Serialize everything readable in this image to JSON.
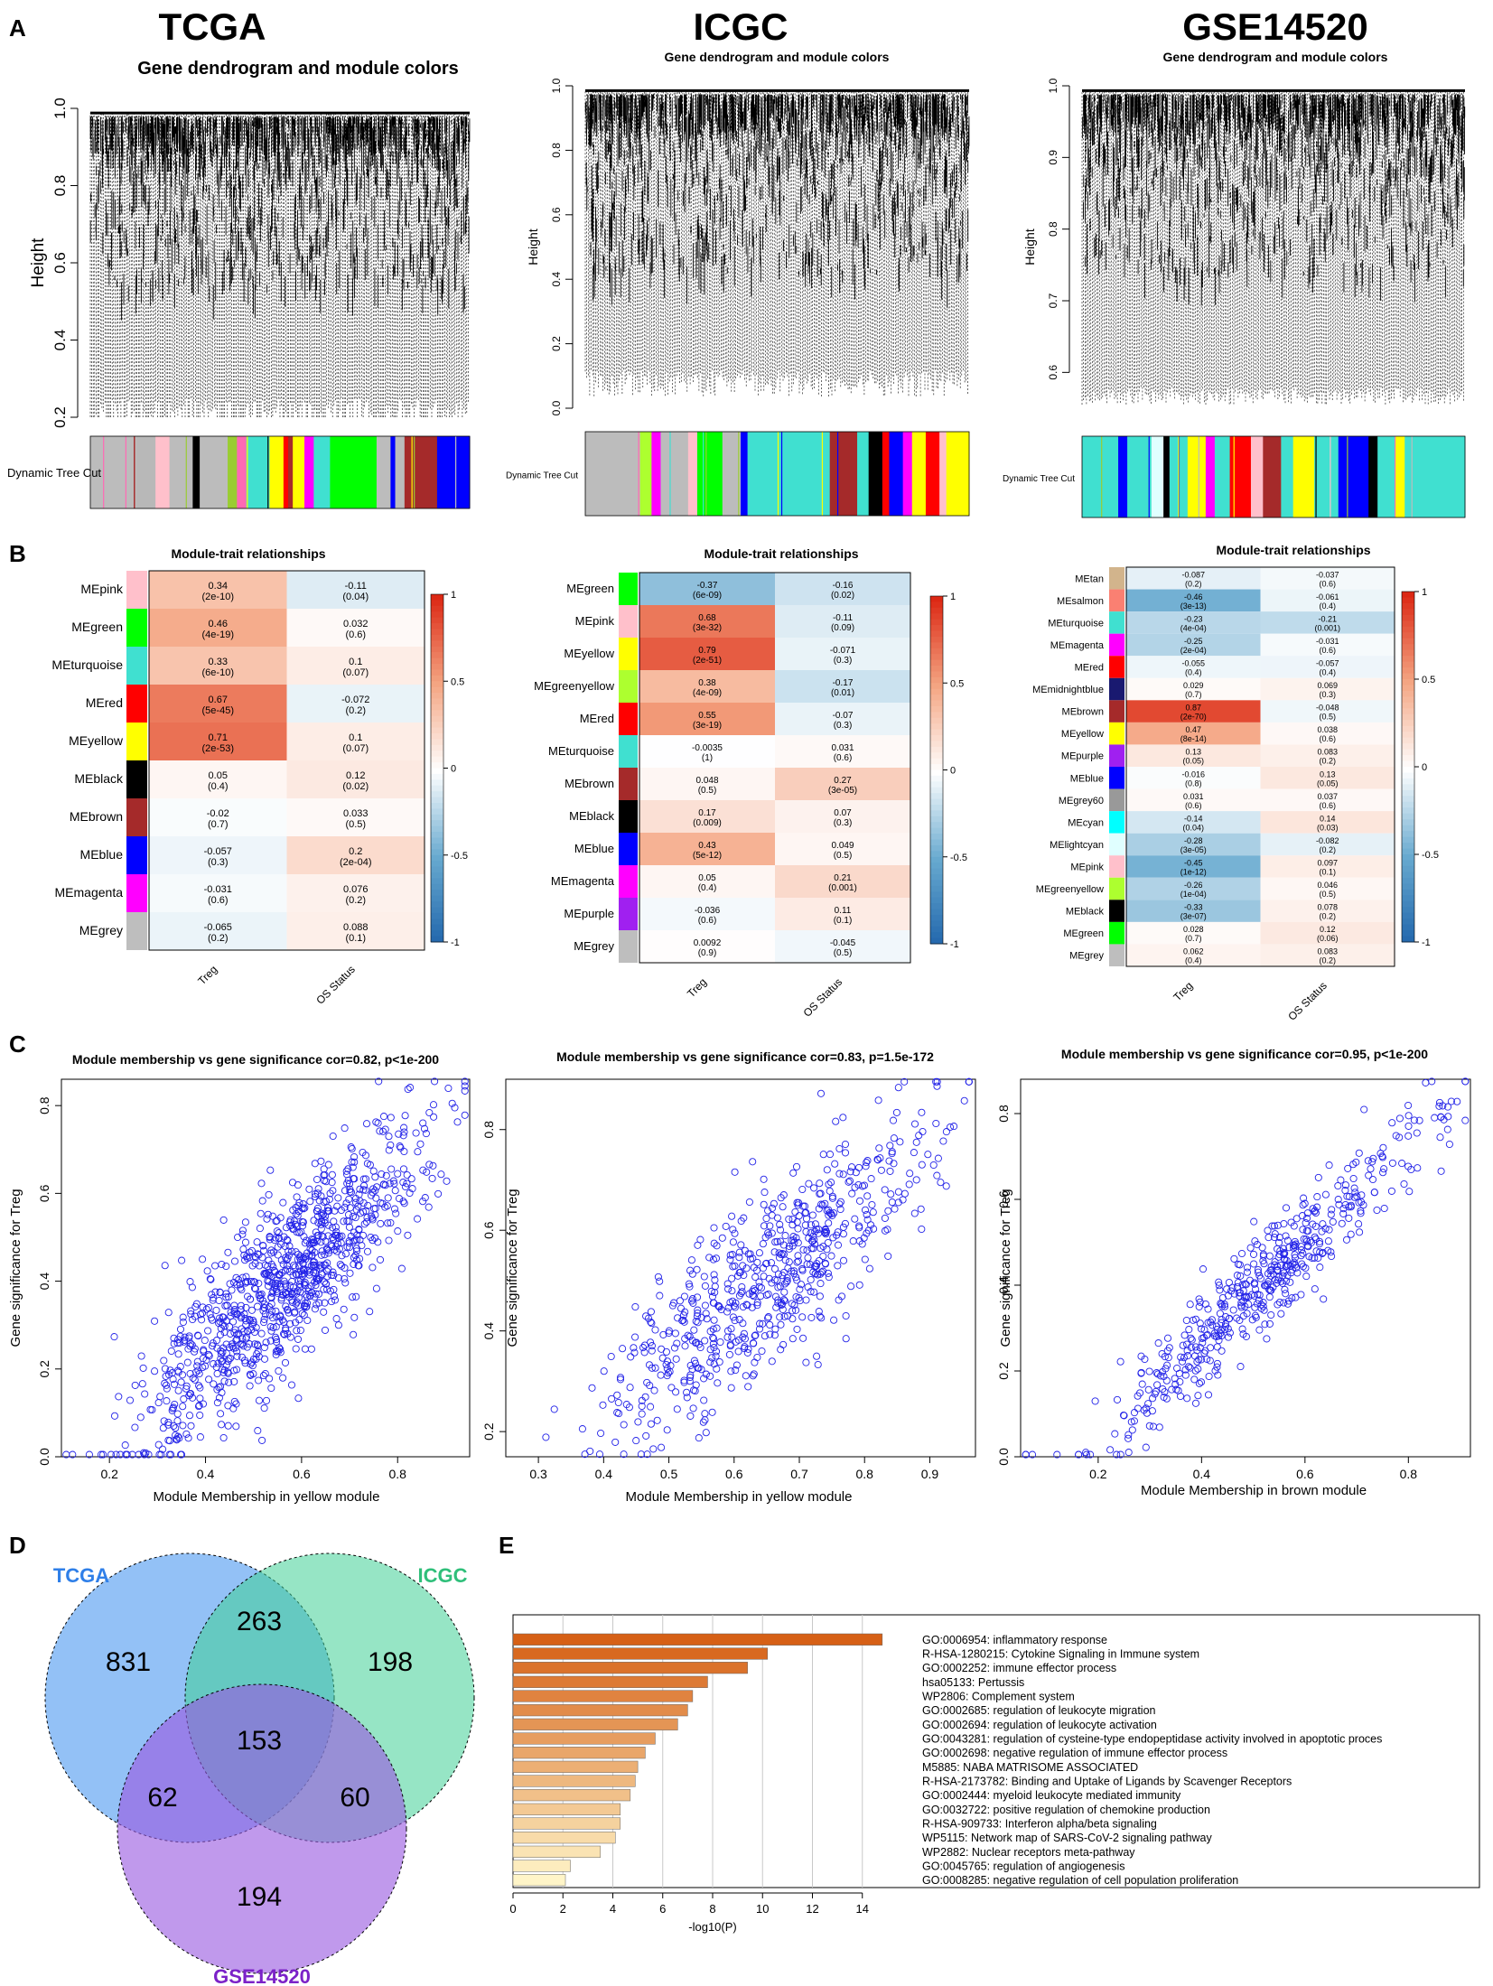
{
  "panel_letters": {
    "A": "A",
    "B": "B",
    "C": "C",
    "D": "D",
    "E": "E"
  },
  "datasets": [
    "TCGA",
    "ICGC",
    "GSE14520"
  ],
  "panel_a": {
    "subtitle": "Gene dendrogram and module colors",
    "ylabel": "Height",
    "track_label": "Dynamic Tree Cut",
    "tcga": {
      "ticks": [
        "0.2",
        "0.4",
        "0.6",
        "0.8",
        "1.0"
      ],
      "ylim": [
        0.2,
        1.0
      ],
      "modules": [
        [
          "#bcbcbc",
          1
        ],
        [
          "#b8b8b8",
          0.4
        ],
        [
          "#ffc0cb",
          0.3
        ],
        [
          "#bcbcbc",
          0.5
        ],
        [
          "#000000",
          0.15
        ],
        [
          "#bcbcbc",
          0.6
        ],
        [
          "#9acd32",
          0.2
        ],
        [
          "#ff69b4",
          0.2
        ],
        [
          "#40e0d0",
          0.5
        ],
        [
          "#ffff00",
          0.3
        ],
        [
          "#ff0000",
          0.1
        ],
        [
          "#a52a2a",
          0.1
        ],
        [
          "#ffff00",
          0.25
        ],
        [
          "#ff00ff",
          0.2
        ],
        [
          "#40e0d0",
          0.35
        ],
        [
          "#00ff00",
          1.0
        ],
        [
          "#bcbcbc",
          0.3
        ],
        [
          "#0000ff",
          0.1
        ],
        [
          "#bcbcbc",
          0.2
        ],
        [
          "#a52a2a",
          0.7
        ],
        [
          "#0000ff",
          0.7
        ]
      ]
    },
    "icgc": {
      "ticks": [
        "0.0",
        "0.2",
        "0.4",
        "0.6",
        "0.8",
        "1.0"
      ],
      "ylim": [
        0.0,
        1.0
      ],
      "modules": [
        [
          "#bcbcbc",
          1.2
        ],
        [
          "#adff2f",
          0.25
        ],
        [
          "#ff00ff",
          0.2
        ],
        [
          "#bcbcbc",
          0.6
        ],
        [
          "#ffc0cb",
          0.2
        ],
        [
          "#00ff00",
          0.55
        ],
        [
          "#bcbcbc",
          0.4
        ],
        [
          "#0000ff",
          0.15
        ],
        [
          "#40e0d0",
          1.8
        ],
        [
          "#a52a2a",
          0.6
        ],
        [
          "#40e0d0",
          0.25
        ],
        [
          "#000000",
          0.3
        ],
        [
          "#ff0000",
          0.15
        ],
        [
          "#0000ff",
          0.3
        ],
        [
          "#ff00ff",
          0.2
        ],
        [
          "#ffff00",
          0.3
        ],
        [
          "#ff0000",
          0.3
        ],
        [
          "#ffc0cb",
          0.15
        ],
        [
          "#ffff00",
          0.5
        ]
      ]
    },
    "gse": {
      "ticks": [
        "0.6",
        "0.7",
        "0.8",
        "0.9",
        "1.0"
      ],
      "ylim": [
        0.55,
        1.0
      ],
      "modules": [
        [
          "#40e0d0",
          0.6
        ],
        [
          "#0000ff",
          0.15
        ],
        [
          "#40e0d0",
          0.4
        ],
        [
          "#e0ffff",
          0.2
        ],
        [
          "#000000",
          0.1
        ],
        [
          "#40e0d0",
          0.3
        ],
        [
          "#ffff00",
          0.3
        ],
        [
          "#ff00ff",
          0.15
        ],
        [
          "#40e0d0",
          0.25
        ],
        [
          "#ff0000",
          0.35
        ],
        [
          "#ffc0cb",
          0.2
        ],
        [
          "#a52a2a",
          0.3
        ],
        [
          "#40e0d0",
          0.2
        ],
        [
          "#ffff00",
          0.15
        ],
        [
          "#ffff00",
          0.2
        ],
        [
          "#40e0d0",
          0.4
        ],
        [
          "#0000ff",
          0.5
        ],
        [
          "#000000",
          0.15
        ],
        [
          "#40e0d0",
          0.3
        ],
        [
          "#ffff00",
          0.15
        ],
        [
          "#40e0d0",
          1.0
        ]
      ]
    }
  },
  "panel_b": {
    "title": "Module-trait relationships",
    "traits": [
      "Treg",
      "OS Status"
    ],
    "legend_ticks": [
      "1",
      "0.5",
      "0",
      "-0.5",
      "-1"
    ],
    "tcga": [
      {
        "name": "MEpink",
        "color": "#ffc0cb",
        "treg": "0.34",
        "treg_p": "(2e-10)",
        "os": "-0.11",
        "os_p": "(0.04)"
      },
      {
        "name": "MEgreen",
        "color": "#00ff00",
        "treg": "0.46",
        "treg_p": "(4e-19)",
        "os": "0.032",
        "os_p": "(0.6)"
      },
      {
        "name": "MEturquoise",
        "color": "#40e0d0",
        "treg": "0.33",
        "treg_p": "(6e-10)",
        "os": "0.1",
        "os_p": "(0.07)"
      },
      {
        "name": "MEred",
        "color": "#ff0000",
        "treg": "0.67",
        "treg_p": "(5e-45)",
        "os": "-0.072",
        "os_p": "(0.2)"
      },
      {
        "name": "MEyellow",
        "color": "#ffff00",
        "treg": "0.71",
        "treg_p": "(2e-53)",
        "os": "0.1",
        "os_p": "(0.07)"
      },
      {
        "name": "MEblack",
        "color": "#000000",
        "treg": "0.05",
        "treg_p": "(0.4)",
        "os": "0.12",
        "os_p": "(0.02)"
      },
      {
        "name": "MEbrown",
        "color": "#a52a2a",
        "treg": "-0.02",
        "treg_p": "(0.7)",
        "os": "0.033",
        "os_p": "(0.5)"
      },
      {
        "name": "MEblue",
        "color": "#0000ff",
        "treg": "-0.057",
        "treg_p": "(0.3)",
        "os": "0.2",
        "os_p": "(2e-04)"
      },
      {
        "name": "MEmagenta",
        "color": "#ff00ff",
        "treg": "-0.031",
        "treg_p": "(0.6)",
        "os": "0.076",
        "os_p": "(0.2)"
      },
      {
        "name": "MEgrey",
        "color": "#bebebe",
        "treg": "-0.065",
        "treg_p": "(0.2)",
        "os": "0.088",
        "os_p": "(0.1)"
      }
    ],
    "icgc": [
      {
        "name": "MEgreen",
        "color": "#00ff00",
        "treg": "-0.37",
        "treg_p": "(6e-09)",
        "os": "-0.16",
        "os_p": "(0.02)"
      },
      {
        "name": "MEpink",
        "color": "#ffc0cb",
        "treg": "0.68",
        "treg_p": "(3e-32)",
        "os": "-0.11",
        "os_p": "(0.09)"
      },
      {
        "name": "MEyellow",
        "color": "#ffff00",
        "treg": "0.79",
        "treg_p": "(2e-51)",
        "os": "-0.071",
        "os_p": "(0.3)"
      },
      {
        "name": "MEgreenyellow",
        "color": "#adff2f",
        "treg": "0.38",
        "treg_p": "(4e-09)",
        "os": "-0.17",
        "os_p": "(0.01)"
      },
      {
        "name": "MEred",
        "color": "#ff0000",
        "treg": "0.55",
        "treg_p": "(3e-19)",
        "os": "-0.07",
        "os_p": "(0.3)"
      },
      {
        "name": "MEturquoise",
        "color": "#40e0d0",
        "treg": "-0.0035",
        "treg_p": "(1)",
        "os": "0.031",
        "os_p": "(0.6)"
      },
      {
        "name": "MEbrown",
        "color": "#a52a2a",
        "treg": "0.048",
        "treg_p": "(0.5)",
        "os": "0.27",
        "os_p": "(3e-05)"
      },
      {
        "name": "MEblack",
        "color": "#000000",
        "treg": "0.17",
        "treg_p": "(0.009)",
        "os": "0.07",
        "os_p": "(0.3)"
      },
      {
        "name": "MEblue",
        "color": "#0000ff",
        "treg": "0.43",
        "treg_p": "(5e-12)",
        "os": "0.049",
        "os_p": "(0.5)"
      },
      {
        "name": "MEmagenta",
        "color": "#ff00ff",
        "treg": "0.05",
        "treg_p": "(0.4)",
        "os": "0.21",
        "os_p": "(0.001)"
      },
      {
        "name": "MEpurple",
        "color": "#a020f0",
        "treg": "-0.036",
        "treg_p": "(0.6)",
        "os": "0.11",
        "os_p": "(0.1)"
      },
      {
        "name": "MEgrey",
        "color": "#bebebe",
        "treg": "0.0092",
        "treg_p": "(0.9)",
        "os": "-0.045",
        "os_p": "(0.5)"
      }
    ],
    "gse": [
      {
        "name": "MEtan",
        "color": "#d2b48c",
        "treg": "-0.087",
        "treg_p": "(0.2)",
        "os": "-0.037",
        "os_p": "(0.6)"
      },
      {
        "name": "MEsalmon",
        "color": "#fa8072",
        "treg": "-0.46",
        "treg_p": "(3e-13)",
        "os": "-0.061",
        "os_p": "(0.4)"
      },
      {
        "name": "MEturquoise",
        "color": "#40e0d0",
        "treg": "-0.23",
        "treg_p": "(4e-04)",
        "os": "-0.21",
        "os_p": "(0.001)"
      },
      {
        "name": "MEmagenta",
        "color": "#ff00ff",
        "treg": "-0.25",
        "treg_p": "(2e-04)",
        "os": "-0.031",
        "os_p": "(0.6)"
      },
      {
        "name": "MEred",
        "color": "#ff0000",
        "treg": "-0.055",
        "treg_p": "(0.4)",
        "os": "-0.057",
        "os_p": "(0.4)"
      },
      {
        "name": "MEmidnightblue",
        "color": "#191970",
        "treg": "0.029",
        "treg_p": "(0.7)",
        "os": "0.069",
        "os_p": "(0.3)"
      },
      {
        "name": "MEbrown",
        "color": "#a52a2a",
        "treg": "0.87",
        "treg_p": "(2e-70)",
        "os": "-0.048",
        "os_p": "(0.5)"
      },
      {
        "name": "MEyellow",
        "color": "#ffff00",
        "treg": "0.47",
        "treg_p": "(8e-14)",
        "os": "0.038",
        "os_p": "(0.6)"
      },
      {
        "name": "MEpurple",
        "color": "#a020f0",
        "treg": "0.13",
        "treg_p": "(0.05)",
        "os": "0.083",
        "os_p": "(0.2)"
      },
      {
        "name": "MEblue",
        "color": "#0000ff",
        "treg": "-0.016",
        "treg_p": "(0.8)",
        "os": "0.13",
        "os_p": "(0.05)"
      },
      {
        "name": "MEgrey60",
        "color": "#999999",
        "treg": "0.031",
        "treg_p": "(0.6)",
        "os": "0.037",
        "os_p": "(0.6)"
      },
      {
        "name": "MEcyan",
        "color": "#00ffff",
        "treg": "-0.14",
        "treg_p": "(0.04)",
        "os": "0.14",
        "os_p": "(0.03)"
      },
      {
        "name": "MElightcyan",
        "color": "#e0ffff",
        "treg": "-0.28",
        "treg_p": "(3e-05)",
        "os": "-0.082",
        "os_p": "(0.2)"
      },
      {
        "name": "MEpink",
        "color": "#ffc0cb",
        "treg": "-0.45",
        "treg_p": "(1e-12)",
        "os": "0.097",
        "os_p": "(0.1)"
      },
      {
        "name": "MEgreenyellow",
        "color": "#adff2f",
        "treg": "-0.26",
        "treg_p": "(1e-04)",
        "os": "0.046",
        "os_p": "(0.5)"
      },
      {
        "name": "MEblack",
        "color": "#000000",
        "treg": "-0.33",
        "treg_p": "(3e-07)",
        "os": "0.078",
        "os_p": "(0.2)"
      },
      {
        "name": "MEgreen",
        "color": "#00ff00",
        "treg": "0.028",
        "treg_p": "(0.7)",
        "os": "0.12",
        "os_p": "(0.06)"
      },
      {
        "name": "MEgrey",
        "color": "#bebebe",
        "treg": "0.062",
        "treg_p": "(0.4)",
        "os": "0.083",
        "os_p": "(0.2)"
      }
    ]
  },
  "chart_data": [
    {
      "type": "scatter",
      "title": "Module membership vs gene significance cor=0.82, p<1e-200",
      "xlabel": "Module Membership in yellow module",
      "ylabel": "Gene significance for Treg",
      "xlim": [
        0.1,
        0.95
      ],
      "ylim": [
        0.0,
        0.86
      ],
      "cor": 0.82,
      "n_points": 1000,
      "xticks": [
        "0.2",
        "0.4",
        "0.6",
        "0.8"
      ],
      "yticks": [
        "0.0",
        "0.2",
        "0.4",
        "0.6",
        "0.8"
      ]
    },
    {
      "type": "scatter",
      "title": "Module membership vs gene significance cor=0.83, p=1.5e-172",
      "xlabel": "Module Membership in yellow module",
      "ylabel": "Gene significance for Treg",
      "xlim": [
        0.25,
        0.97
      ],
      "ylim": [
        0.15,
        0.9
      ],
      "cor": 0.83,
      "n_points": 650,
      "xticks": [
        "0.3",
        "0.4",
        "0.5",
        "0.6",
        "0.7",
        "0.8",
        "0.9"
      ],
      "yticks": [
        "0.2",
        "0.4",
        "0.6",
        "0.8"
      ]
    },
    {
      "type": "scatter",
      "title": "Module membership vs gene significance cor=0.95, p<1e-200",
      "xlabel": "Module Membership in brown module",
      "ylabel": "Gene significance for Treg",
      "xlim": [
        0.05,
        0.92
      ],
      "ylim": [
        0.0,
        0.88
      ],
      "cor": 0.95,
      "n_points": 500,
      "xticks": [
        "0.2",
        "0.4",
        "0.6",
        "0.8"
      ],
      "yticks": [
        "0.0",
        "0.2",
        "0.4",
        "0.6",
        "0.8"
      ]
    },
    {
      "type": "venn",
      "sets": [
        "TCGA",
        "ICGC",
        "GSE14520"
      ],
      "regions": {
        "TCGA_only": "831",
        "ICGC_only": "198",
        "GSE14520_only": "194",
        "TCGA_ICGC": "263",
        "TCGA_GSE14520": "62",
        "ICGC_GSE14520": "60",
        "all": "153"
      }
    },
    {
      "type": "bar",
      "orientation": "horizontal",
      "xlabel": "-log10(P)",
      "xlim": [
        0,
        16
      ],
      "xticks": [
        "0",
        "2",
        "4",
        "6",
        "8",
        "10",
        "12",
        "14"
      ],
      "categories": [
        "GO:0006954: inflammatory response",
        "R-HSA-1280215: Cytokine Signaling in Immune system",
        "GO:0002252: immune effector process",
        "hsa05133: Pertussis",
        "WP2806: Complement system",
        "GO:0002685: regulation of leukocyte migration",
        "GO:0002694: regulation of leukocyte activation",
        "GO:0043281: regulation of cysteine-type endopeptidase activity involved in apoptotic proces",
        "GO:0002698: negative regulation of immune effector process",
        "M5885: NABA MATRISOME ASSOCIATED",
        "R-HSA-2173782: Binding and Uptake of Ligands by Scavenger Receptors",
        "GO:0002444: myeloid leukocyte mediated immunity",
        "GO:0032722: positive regulation of chemokine production",
        "R-HSA-909733: Interferon alpha/beta signaling",
        "WP5115: Network map of SARS-CoV-2 signaling pathway",
        "WP2882: Nuclear receptors meta-pathway",
        "GO:0045765: regulation of angiogenesis",
        "GO:0008285: negative regulation of cell population proliferation"
      ],
      "values": [
        14.8,
        10.2,
        9.4,
        7.8,
        7.2,
        7.0,
        6.6,
        5.7,
        5.3,
        5.0,
        4.9,
        4.7,
        4.3,
        4.3,
        4.1,
        3.5,
        2.3,
        2.1
      ]
    }
  ]
}
